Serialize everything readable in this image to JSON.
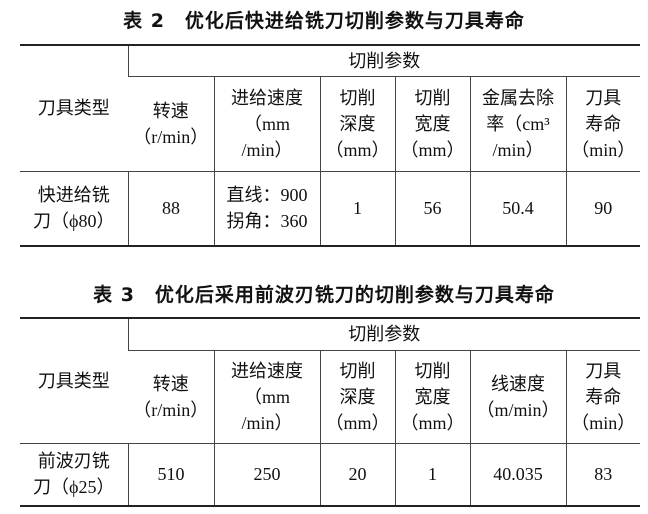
{
  "table2": {
    "title": "表 2　优化后快进给铣刀切削参数与刀具寿命",
    "tool_type_header": "刀具类型",
    "group_header": "切削参数",
    "columns": [
      [
        "转速",
        "（r/min）"
      ],
      [
        "进给速度",
        "（mm",
        "/min）"
      ],
      [
        "切削",
        "深度",
        "（mm）"
      ],
      [
        "切削",
        "宽度",
        "（mm）"
      ],
      [
        "金属去除",
        "率（cm³",
        "/min）"
      ],
      [
        "刀具",
        "寿命",
        "（min）"
      ]
    ],
    "row": {
      "tool": [
        "快进给铣",
        "刀（ϕ80）"
      ],
      "values": [
        [
          "88"
        ],
        [
          "直线：900",
          "拐角：360"
        ],
        [
          "1"
        ],
        [
          "56"
        ],
        [
          "50.4"
        ],
        [
          "90"
        ]
      ]
    }
  },
  "table3": {
    "title": "表 3　优化后采用前波刃铣刀的切削参数与刀具寿命",
    "tool_type_header": "刀具类型",
    "group_header": "切削参数",
    "columns": [
      [
        "转速",
        "（r/min）"
      ],
      [
        "进给速度",
        "（mm",
        "/min）"
      ],
      [
        "切削",
        "深度",
        "（mm）"
      ],
      [
        "切削",
        "宽度",
        "（mm）"
      ],
      [
        "线速度",
        "（m/min）"
      ],
      [
        "刀具",
        "寿命",
        "（min）"
      ]
    ],
    "row": {
      "tool": [
        "前波刃铣",
        "刀（ϕ25）"
      ],
      "values": [
        [
          "510"
        ],
        [
          "250"
        ],
        [
          "20"
        ],
        [
          "1"
        ],
        [
          "40.035"
        ],
        [
          "83"
        ]
      ]
    }
  }
}
